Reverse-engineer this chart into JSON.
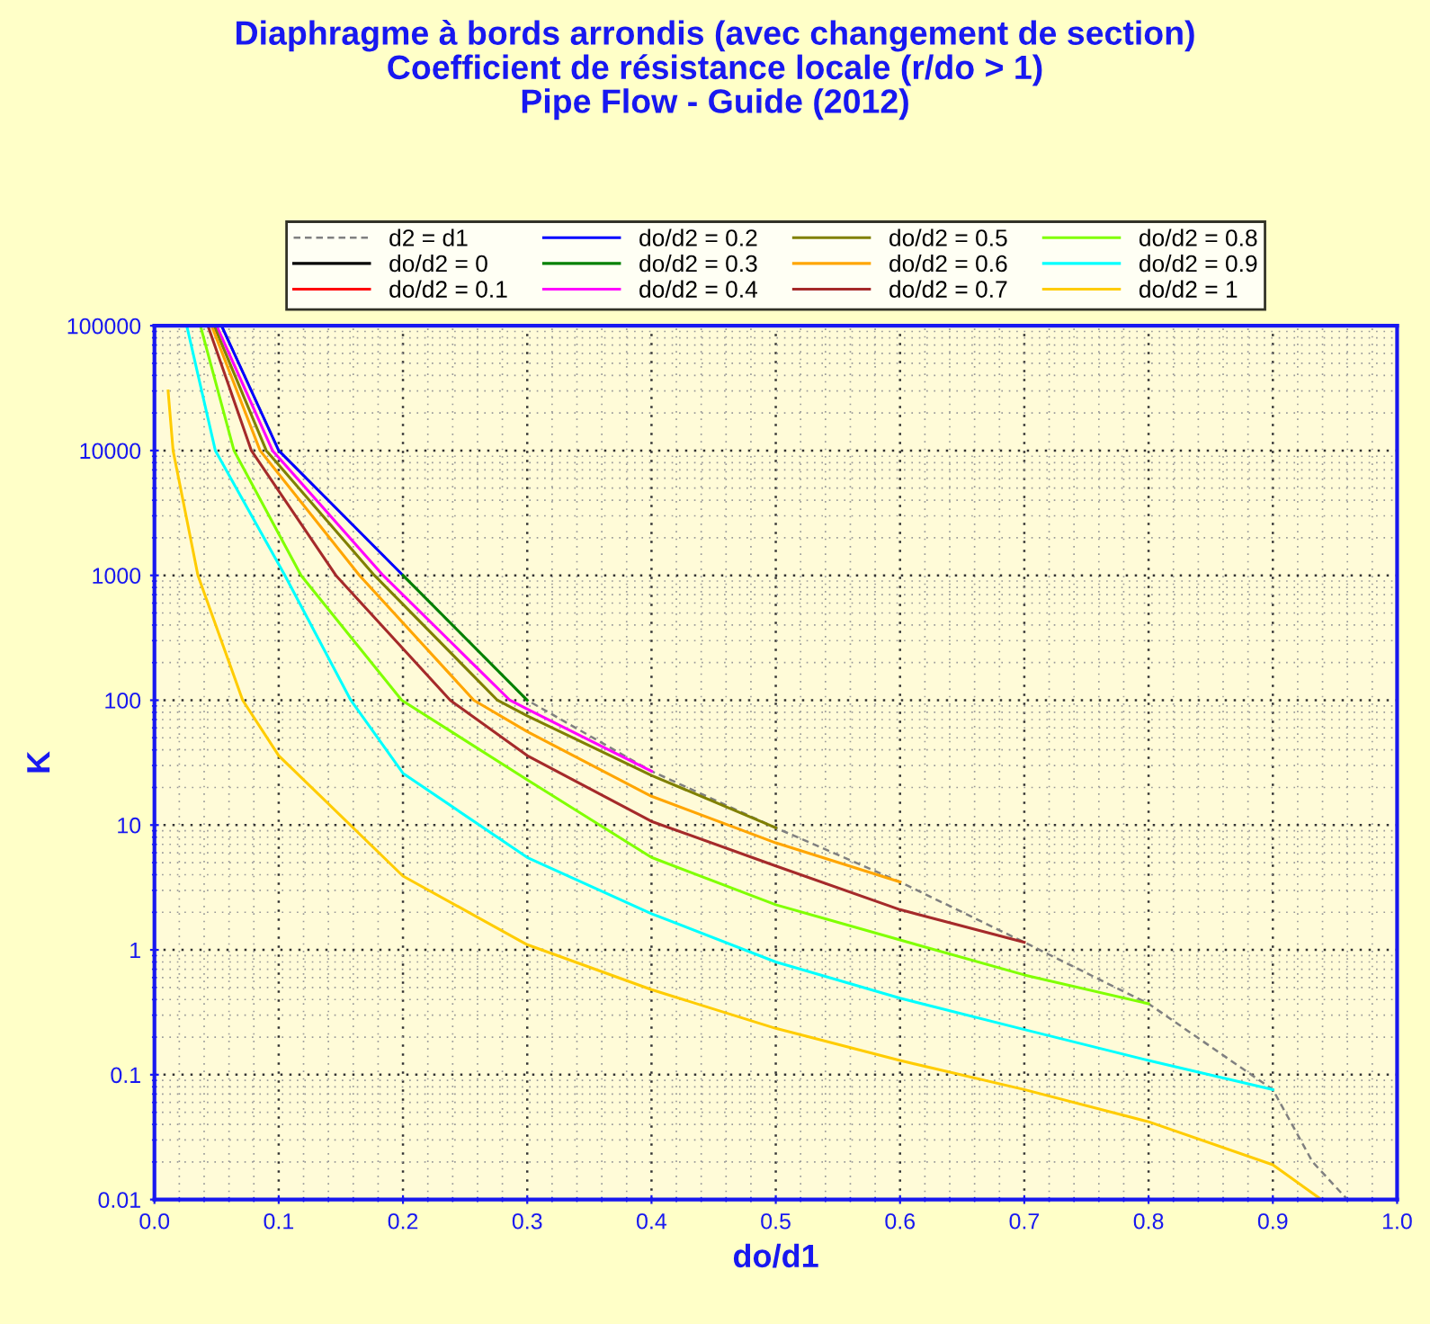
{
  "chart_data": {
    "type": "line",
    "title": "Diaphragme à bords arrondis (avec changement de section)\nCoefficient de résistance locale (r/do > 1)\nPipe Flow - Guide (2012)",
    "xlabel": "do/d1",
    "ylabel": "K",
    "log": "y",
    "grid": true,
    "legend": "top",
    "xlim": [
      0.0,
      1.0
    ],
    "ylim": [
      0.01,
      100000
    ],
    "xticks": [
      {
        "value": 0.0,
        "label": "0.0"
      },
      {
        "value": 0.1,
        "label": "0.1"
      },
      {
        "value": 0.2,
        "label": "0.2"
      },
      {
        "value": 0.3,
        "label": "0.3"
      },
      {
        "value": 0.4,
        "label": "0.4"
      },
      {
        "value": 0.5,
        "label": "0.5"
      },
      {
        "value": 0.6,
        "label": "0.6"
      },
      {
        "value": 0.7,
        "label": "0.7"
      },
      {
        "value": 0.8,
        "label": "0.8"
      },
      {
        "value": 0.9,
        "label": "0.9"
      },
      {
        "value": 1.0,
        "label": "1.0"
      }
    ],
    "yticks": [
      {
        "value": 0.01,
        "label": "0.01"
      },
      {
        "value": 0.1,
        "label": "0.1"
      },
      {
        "value": 1,
        "label": "1"
      },
      {
        "value": 10,
        "label": "10"
      },
      {
        "value": 100,
        "label": "100"
      },
      {
        "value": 1000,
        "label": "1000"
      },
      {
        "value": 10000,
        "label": "10000"
      },
      {
        "value": 100000,
        "label": "100000"
      }
    ],
    "series": [
      {
        "name": "d2 = d1",
        "color": "#808080",
        "line_style": "dashed",
        "x": [
          0.054,
          0.1,
          0.2,
          0.3,
          0.4,
          0.5,
          0.6,
          0.7,
          0.8,
          0.9,
          0.932,
          0.96
        ],
        "values": [
          100000,
          10000,
          1000,
          100,
          27,
          9.5,
          3.5,
          1.15,
          0.37,
          0.076,
          0.02,
          0.01
        ]
      },
      {
        "name": "do/d2 = 0",
        "color": "#000000"
      },
      {
        "name": "do/d2 = 0.1",
        "color": "#ff0000"
      },
      {
        "name": "do/d2 = 0.2",
        "color": "#0000ff",
        "x": [
          0.054,
          0.1,
          0.2
        ],
        "values": [
          100000,
          10000,
          1000
        ]
      },
      {
        "name": "do/d2 = 0.3",
        "color": "#008000",
        "x": [
          0.2,
          0.3
        ],
        "values": [
          1000,
          100
        ]
      },
      {
        "name": "do/d2 = 0.4",
        "color": "#ff00ff",
        "x": [
          0.05,
          0.095,
          0.184,
          0.286,
          0.3,
          0.4
        ],
        "values": [
          100000,
          10000,
          1000,
          100,
          85,
          27
        ]
      },
      {
        "name": "do/d2 = 0.5",
        "color": "#808000",
        "x": [
          0.048,
          0.09,
          0.177,
          0.276,
          0.3,
          0.4,
          0.5
        ],
        "values": [
          100000,
          10000,
          1000,
          100,
          75,
          25,
          9.5
        ]
      },
      {
        "name": "do/d2 = 0.6",
        "color": "#ffa500",
        "x": [
          0.046,
          0.085,
          0.165,
          0.257,
          0.3,
          0.4,
          0.5,
          0.6
        ],
        "values": [
          100000,
          10000,
          1000,
          100,
          56,
          17,
          7.2,
          3.5
        ]
      },
      {
        "name": "do/d2 = 0.7",
        "color": "#a52a2a",
        "x": [
          0.043,
          0.078,
          0.146,
          0.238,
          0.3,
          0.4,
          0.5,
          0.6,
          0.7
        ],
        "values": [
          100000,
          10000,
          1000,
          100,
          36,
          10.7,
          4.7,
          2.1,
          1.15
        ]
      },
      {
        "name": "do/d2 = 0.8",
        "color": "#80ff00",
        "x": [
          0.037,
          0.064,
          0.118,
          0.199,
          0.3,
          0.4,
          0.5,
          0.6,
          0.7,
          0.8
        ],
        "values": [
          100000,
          10000,
          1000,
          100,
          23,
          5.5,
          2.3,
          1.2,
          0.63,
          0.37
        ]
      },
      {
        "name": "do/d2 = 0.9",
        "color": "#00ffff",
        "x": [
          0.026,
          0.049,
          0.105,
          0.158,
          0.2,
          0.3,
          0.4,
          0.5,
          0.6,
          0.7,
          0.8,
          0.9
        ],
        "values": [
          100000,
          10000,
          1000,
          100,
          26,
          5.5,
          1.95,
          0.8,
          0.41,
          0.23,
          0.13,
          0.076
        ]
      },
      {
        "name": "do/d2 = 1",
        "color": "#ffcc00",
        "x": [
          0.011,
          0.015,
          0.035,
          0.071,
          0.1,
          0.2,
          0.3,
          0.4,
          0.5,
          0.6,
          0.7,
          0.8,
          0.9,
          0.939
        ],
        "values": [
          30000,
          10000,
          1000,
          100,
          36,
          3.9,
          1.1,
          0.48,
          0.235,
          0.13,
          0.076,
          0.042,
          0.019,
          0.01
        ]
      }
    ]
  }
}
